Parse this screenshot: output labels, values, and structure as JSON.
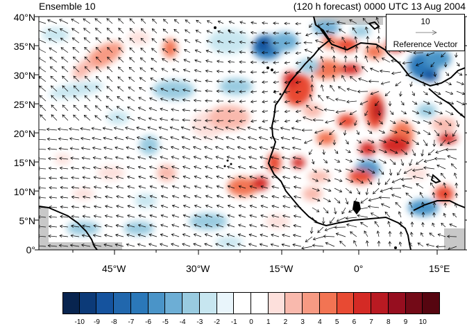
{
  "title_left": "Ensemble 10",
  "title_right": "(120 h forecast) 0000 UTC 13 Aug 2004",
  "reference_vector": {
    "magnitude": "10",
    "label": "Reference Vector"
  },
  "lat_ticks": [
    "40°N",
    "35°N",
    "30°N",
    "25°N",
    "20°N",
    "15°N",
    "10°N",
    "5°N",
    "0°"
  ],
  "lon_ticks": [
    "45°W",
    "30°W",
    "15°W",
    "0°",
    "15°E"
  ],
  "colorbar": {
    "labels": [
      "-10",
      "-9",
      "-8",
      "-7",
      "-6",
      "-5",
      "-4",
      "-3",
      "-2",
      "-1",
      "0",
      "1",
      "2",
      "3",
      "4",
      "5",
      "6",
      "7",
      "8",
      "9",
      "10"
    ],
    "colors": [
      "#08244f",
      "#0c3a78",
      "#15539e",
      "#2167ad",
      "#2b78b9",
      "#4a94c8",
      "#6daed5",
      "#99cbe0",
      "#c7e6f0",
      "#e9f5fb",
      "#ffffff",
      "#ffffff",
      "#fde0dc",
      "#f9b9ad",
      "#f79a83",
      "#f27453",
      "#e84a33",
      "#d42a25",
      "#b91a22",
      "#960e1f",
      "#730a17",
      "#560510"
    ]
  },
  "colors": {
    "land_outline": "#000000",
    "missing_data": "#c8c8c8",
    "vector": "#000000"
  }
}
